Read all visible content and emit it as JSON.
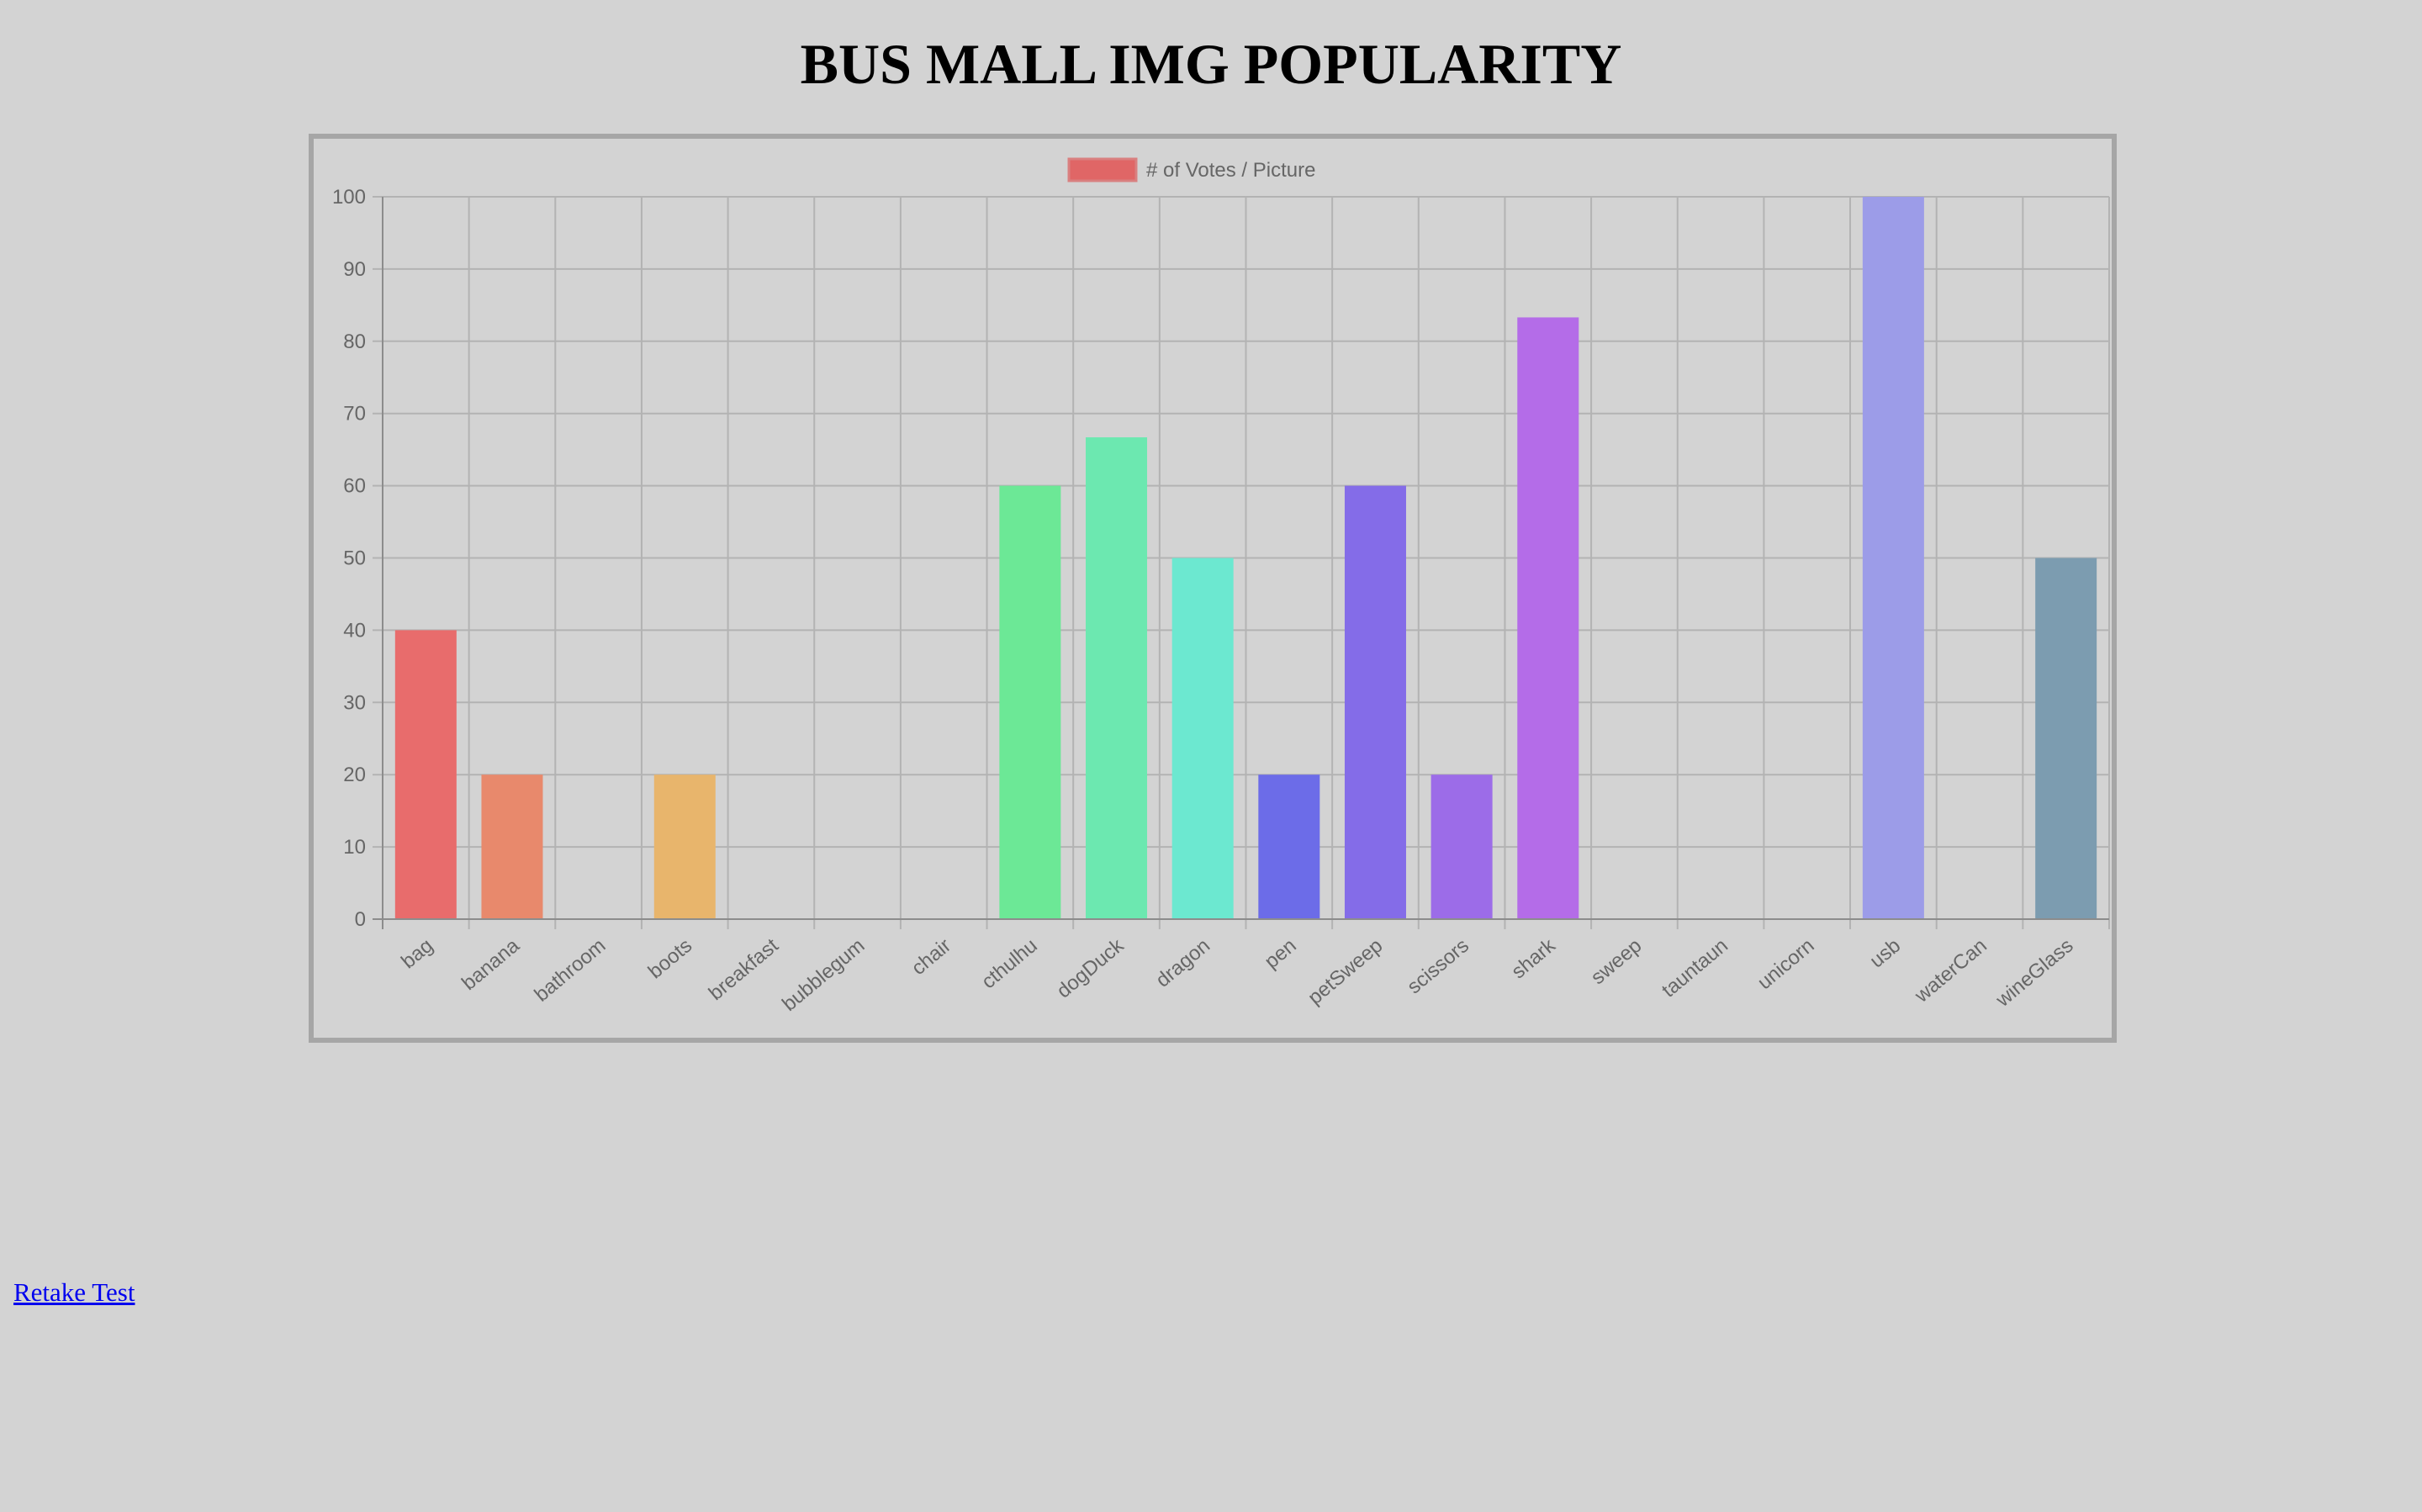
{
  "page": {
    "title": "BUS MALL IMG POPULARITY",
    "retake_label": "Retake Test"
  },
  "chart_data": {
    "type": "bar",
    "legend": {
      "label": "# of Votes / Picture",
      "position": "top",
      "color": "#e06666"
    },
    "categories": [
      "bag",
      "banana",
      "bathroom",
      "boots",
      "breakfast",
      "bubblegum",
      "chair",
      "cthulhu",
      "dogDuck",
      "dragon",
      "pen",
      "petSweep",
      "scissors",
      "shark",
      "sweep",
      "tauntaun",
      "unicorn",
      "usb",
      "waterCan",
      "wineGlass"
    ],
    "series": [
      {
        "name": "# of Votes / Picture",
        "values": [
          40,
          20,
          0,
          20,
          0,
          0,
          0,
          60,
          66.7,
          50,
          20,
          60,
          20,
          83.3,
          0,
          0,
          0,
          100,
          0,
          50
        ]
      }
    ],
    "colors": [
      "#e86c6c",
      "#e8896c",
      "#e8a06c",
      "#e8b56c",
      "#e8c86c",
      "#d8e86c",
      "#a6e86c",
      "#6ce896",
      "#6ce8b0",
      "#6ce8d0",
      "#6c6ce8",
      "#846ce8",
      "#9c6ce8",
      "#b46ce8",
      "#c86ce8",
      "#e86cd8",
      "#e86cb0",
      "#9c9ce8",
      "#8c9cb0",
      "#7c9cb0"
    ],
    "yticks": [
      0,
      10,
      20,
      30,
      40,
      50,
      60,
      70,
      80,
      90,
      100
    ],
    "ylim": [
      0,
      100
    ],
    "grid": true
  }
}
